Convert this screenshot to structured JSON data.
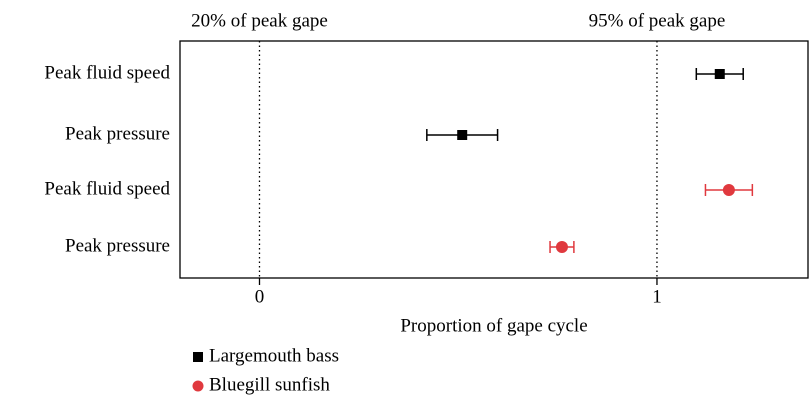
{
  "chart_data": {
    "type": "errorpoint",
    "categories": [
      "Peak fluid speed",
      "Peak pressure",
      "Peak fluid speed",
      "Peak pressure"
    ],
    "series": [
      {
        "name": "Largemouth bass",
        "color": "#000000",
        "marker": "square",
        "values": [
          1.158,
          0.51,
          null,
          null
        ],
        "errors": [
          0.059,
          0.089,
          null,
          null
        ]
      },
      {
        "name": "Bluegill sunfish",
        "color": "#e0393e",
        "marker": "circle",
        "values": [
          null,
          null,
          1.181,
          0.761
        ],
        "errors": [
          null,
          null,
          0.059,
          0.03
        ]
      }
    ],
    "xlabel": "Proportion of gape cycle",
    "xlim": [
      -0.2,
      1.38
    ],
    "xticks": [
      0,
      1
    ],
    "annotations": [
      {
        "text": "20% of peak gape",
        "x": 0
      },
      {
        "text": "95% of peak gape",
        "x": 1
      }
    ]
  }
}
